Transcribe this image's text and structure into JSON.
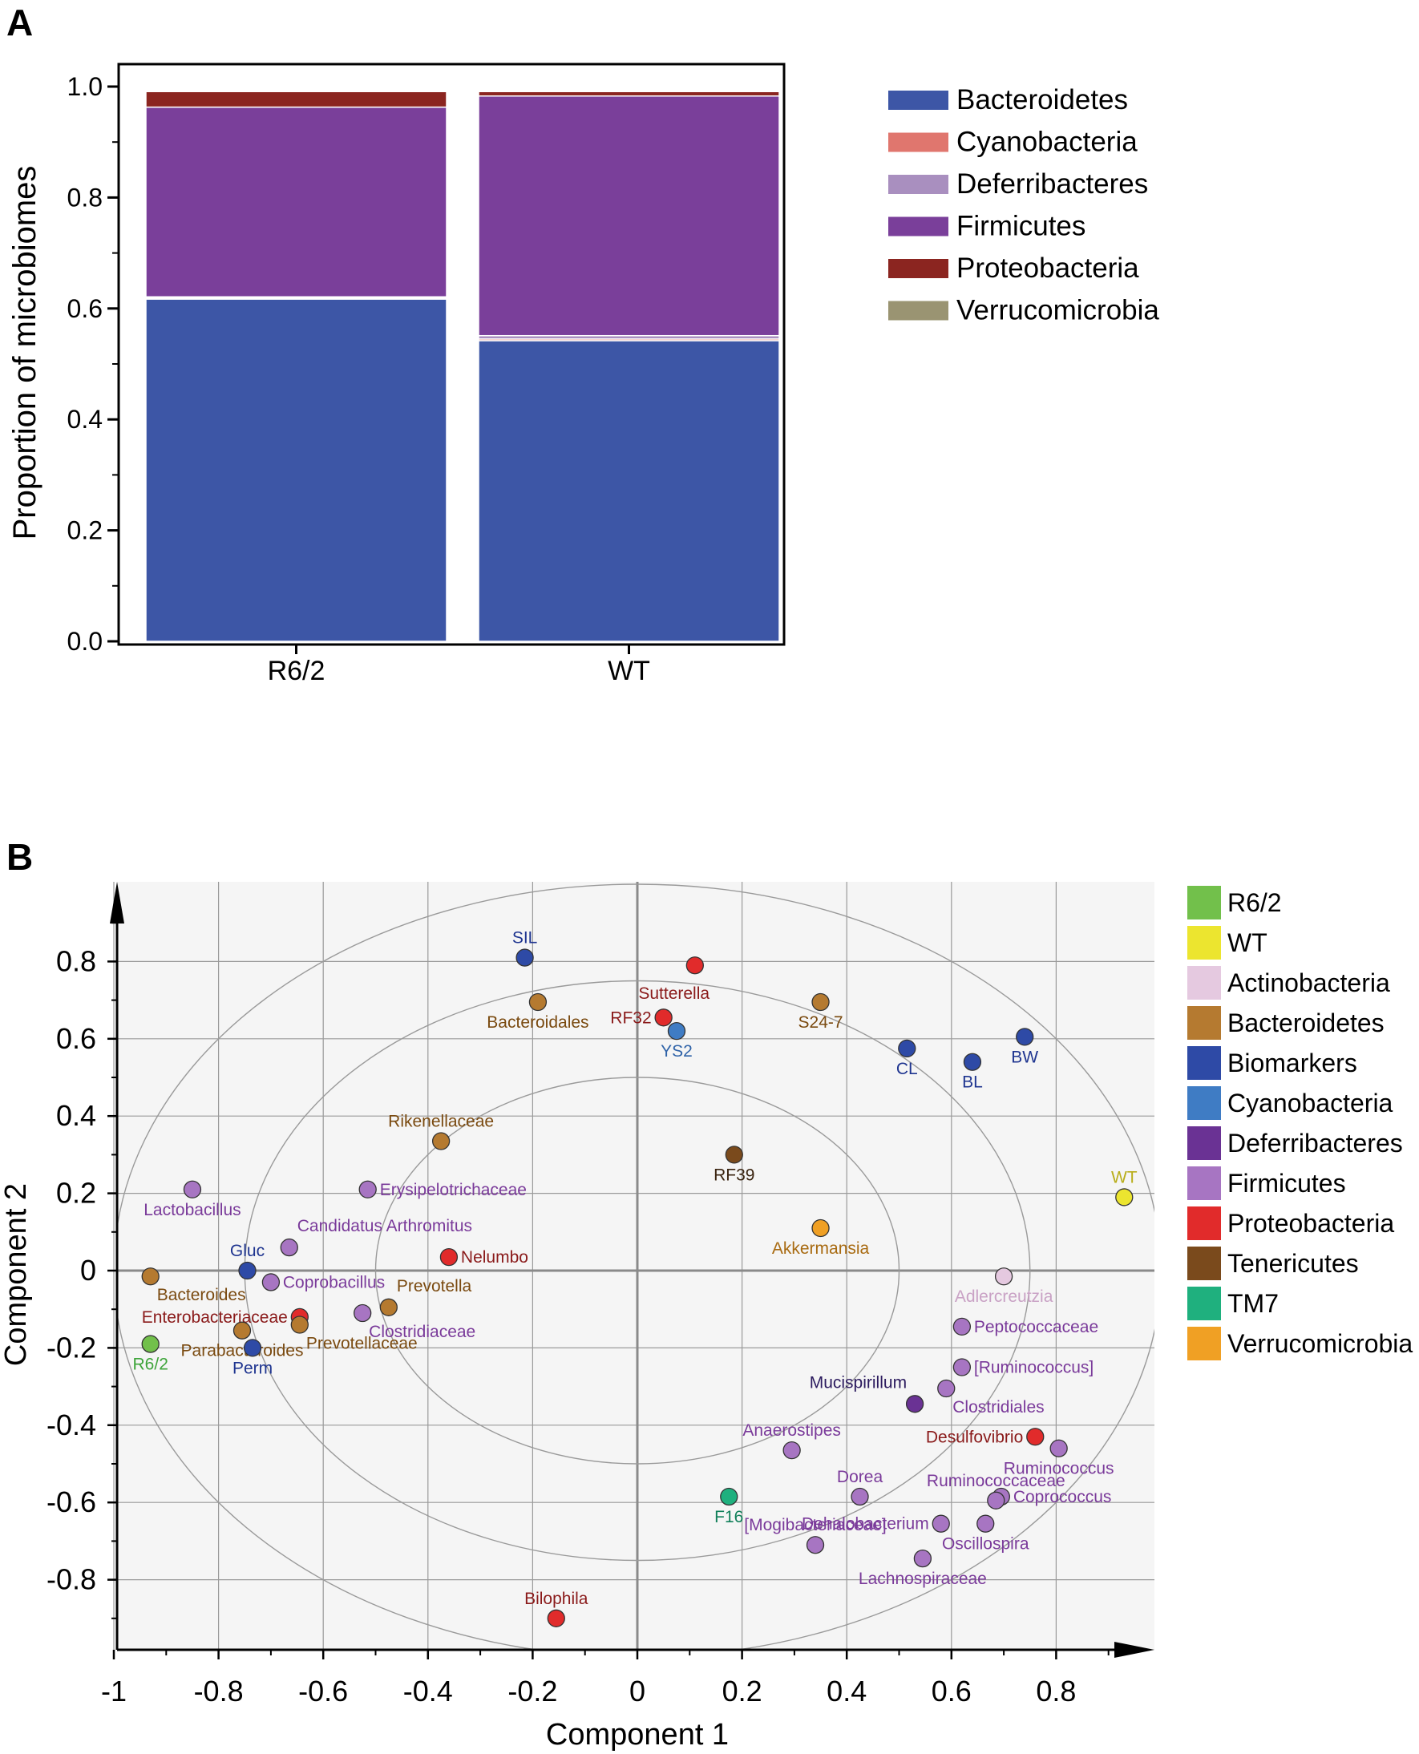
{
  "chart_data": [
    {
      "panel_label": "A",
      "type": "bar",
      "stacked": true,
      "ylabel": "Proportion of microbiomes",
      "xlabel": "",
      "ylim": [
        0,
        1.0
      ],
      "yticks": [
        "0.0",
        "0.2",
        "0.4",
        "0.6",
        "0.8",
        "1.0"
      ],
      "categories": [
        "R6/2",
        "WT"
      ],
      "series": [
        {
          "name": "Bacteroidetes",
          "color": "#3d56a6",
          "values": [
            0.617,
            0.542
          ]
        },
        {
          "name": "Cyanobacteria",
          "color": "#e0766e",
          "values": [
            0.002,
            0.003
          ]
        },
        {
          "name": "Deferribacteres",
          "color": "#a98fbf",
          "values": [
            0.002,
            0.006
          ]
        },
        {
          "name": "Firmicutes",
          "color": "#7a3f9a",
          "values": [
            0.342,
            0.432
          ]
        },
        {
          "name": "Proteobacteria",
          "color": "#8b2520",
          "values": [
            0.028,
            0.008
          ]
        },
        {
          "name": "Verrucomicrobia",
          "color": "#9a9472",
          "values": [
            0.001,
            0.001
          ]
        }
      ]
    },
    {
      "panel_label": "B",
      "type": "scatter",
      "xlabel": "Component 1",
      "ylabel": "Component 2",
      "xlim": [
        -1,
        0.95
      ],
      "ylim": [
        -0.95,
        0.92
      ],
      "xticks": [
        "-1",
        "-0.8",
        "-0.6",
        "-0.4",
        "-0.2",
        "0",
        "0.2",
        "0.4",
        "0.6",
        "0.8"
      ],
      "yticks": [
        "0.8",
        "0.6",
        "0.4",
        "0.2",
        "0",
        "-0.2",
        "-0.4",
        "-0.6",
        "-0.8"
      ],
      "circle_radii": [
        0.5,
        0.75,
        1.0
      ],
      "legend": [
        {
          "name": "R6/2",
          "color": "#72c04b"
        },
        {
          "name": "WT",
          "color": "#ece52f"
        },
        {
          "name": "Actinobacteria",
          "color": "#e5c9e0"
        },
        {
          "name": "Bacteroidetes",
          "color": "#b57a30"
        },
        {
          "name": "Biomarkers",
          "color": "#2e4aa6"
        },
        {
          "name": "Cyanobacteria",
          "color": "#3f7cc4"
        },
        {
          "name": "Deferribacteres",
          "color": "#6a3294"
        },
        {
          "name": "Firmicutes",
          "color": "#a775c2"
        },
        {
          "name": "Proteobacteria",
          "color": "#e12b2b"
        },
        {
          "name": "Tenericutes",
          "color": "#7a4a1c"
        },
        {
          "name": "TM7",
          "color": "#1fb07e"
        },
        {
          "name": "Verrucomicrobia",
          "color": "#f0a024"
        }
      ],
      "points": [
        {
          "label": "SIL",
          "x": -0.215,
          "y": 0.81,
          "group": "Biomarkers",
          "pos": "above"
        },
        {
          "label": "",
          "x": 0.11,
          "y": 0.79,
          "group": "Proteobacteria",
          "pos": "none"
        },
        {
          "label": "Sutterella",
          "x": 0.07,
          "y": 0.72,
          "group": "Proteobacteria",
          "pos": "text-only"
        },
        {
          "label": "Bacteroidales",
          "x": -0.19,
          "y": 0.695,
          "group": "Bacteroidetes",
          "pos": "below"
        },
        {
          "label": "S24-7",
          "x": 0.35,
          "y": 0.695,
          "group": "Bacteroidetes",
          "pos": "below"
        },
        {
          "label": "RF32",
          "x": 0.05,
          "y": 0.655,
          "group": "Proteobacteria",
          "pos": "left"
        },
        {
          "label": "YS2",
          "x": 0.075,
          "y": 0.62,
          "group": "Cyanobacteria",
          "pos": "below"
        },
        {
          "label": "BW",
          "x": 0.74,
          "y": 0.605,
          "group": "Biomarkers",
          "pos": "below"
        },
        {
          "label": "CL",
          "x": 0.515,
          "y": 0.575,
          "group": "Biomarkers",
          "pos": "below"
        },
        {
          "label": "BL",
          "x": 0.64,
          "y": 0.54,
          "group": "Biomarkers",
          "pos": "below"
        },
        {
          "label": "Rikenellaceae",
          "x": -0.375,
          "y": 0.335,
          "group": "Bacteroidetes",
          "pos": "above"
        },
        {
          "label": "RF39",
          "x": 0.185,
          "y": 0.3,
          "group": "Tenericutes",
          "pos": "below"
        },
        {
          "label": "Erysipelotrichaceae",
          "x": -0.515,
          "y": 0.21,
          "group": "Firmicutes",
          "pos": "right"
        },
        {
          "label": "Lactobacillus",
          "x": -0.85,
          "y": 0.21,
          "group": "Firmicutes",
          "pos": "below"
        },
        {
          "label": "WT",
          "x": 0.93,
          "y": 0.19,
          "group": "WT",
          "pos": "above"
        },
        {
          "label": "Akkermansia",
          "x": 0.35,
          "y": 0.11,
          "group": "Verrucomicrobia",
          "pos": "below"
        },
        {
          "label": "Candidatus Arthromitus",
          "x": -0.665,
          "y": 0.06,
          "group": "Firmicutes",
          "pos": "above-right"
        },
        {
          "label": "Nelumbo",
          "x": -0.36,
          "y": 0.035,
          "group": "Proteobacteria",
          "pos": "right"
        },
        {
          "label": "Gluc",
          "x": -0.745,
          "y": 0.0,
          "group": "Biomarkers",
          "pos": "above"
        },
        {
          "label": "Bacteroides",
          "x": -0.93,
          "y": -0.015,
          "group": "Bacteroidetes",
          "pos": "below-right"
        },
        {
          "label": "Coprobacillus",
          "x": -0.7,
          "y": -0.03,
          "group": "Firmicutes",
          "pos": "right"
        },
        {
          "label": "Adlercreutzia",
          "x": 0.7,
          "y": -0.015,
          "group": "Actinobacteria",
          "pos": "below"
        },
        {
          "label": "Prevotella",
          "x": -0.475,
          "y": -0.095,
          "group": "Bacteroidetes",
          "pos": "above-right"
        },
        {
          "label": "Clostridiaceae",
          "x": -0.525,
          "y": -0.11,
          "group": "Firmicutes",
          "pos": "below-right"
        },
        {
          "label": "Enterobacteriaceae",
          "x": -0.645,
          "y": -0.12,
          "group": "Proteobacteria",
          "pos": "left"
        },
        {
          "label": "Prevotellaceae",
          "x": -0.645,
          "y": -0.14,
          "group": "Bacteroidetes",
          "pos": "below-right"
        },
        {
          "label": "Peptococcaceae",
          "x": 0.62,
          "y": -0.145,
          "group": "Firmicutes",
          "pos": "right"
        },
        {
          "label": "Parabacteroides",
          "x": -0.755,
          "y": -0.155,
          "group": "Bacteroidetes",
          "pos": "below"
        },
        {
          "label": "R6/2",
          "x": -0.93,
          "y": -0.19,
          "group": "R6/2",
          "pos": "below"
        },
        {
          "label": "Perm",
          "x": -0.735,
          "y": -0.2,
          "group": "Biomarkers",
          "pos": "below"
        },
        {
          "label": "[Ruminococcus]",
          "x": 0.62,
          "y": -0.25,
          "group": "Firmicutes",
          "pos": "right"
        },
        {
          "label": "Clostridiales",
          "x": 0.59,
          "y": -0.305,
          "group": "Firmicutes",
          "pos": "below-right"
        },
        {
          "label": "Mucispirillum",
          "x": 0.53,
          "y": -0.345,
          "group": "Deferribacteres",
          "pos": "above-left"
        },
        {
          "label": "Desulfovibrio",
          "x": 0.76,
          "y": -0.43,
          "group": "Proteobacteria",
          "pos": "left"
        },
        {
          "label": "Ruminococcus",
          "x": 0.805,
          "y": -0.46,
          "group": "Firmicutes",
          "pos": "below"
        },
        {
          "label": "Anaerostipes",
          "x": 0.295,
          "y": -0.465,
          "group": "Firmicutes",
          "pos": "above"
        },
        {
          "label": "F16",
          "x": 0.175,
          "y": -0.585,
          "group": "TM7",
          "pos": "below"
        },
        {
          "label": "Dorea",
          "x": 0.425,
          "y": -0.585,
          "group": "Firmicutes",
          "pos": "above"
        },
        {
          "label": "Coprococcus",
          "x": 0.695,
          "y": -0.585,
          "group": "Firmicutes",
          "pos": "right"
        },
        {
          "label": "Ruminococcaceae",
          "x": 0.685,
          "y": -0.595,
          "group": "Firmicutes",
          "pos": "above"
        },
        {
          "label": "Dehalobacterium",
          "x": 0.58,
          "y": -0.655,
          "group": "Firmicutes",
          "pos": "left"
        },
        {
          "label": "Oscillospira",
          "x": 0.665,
          "y": -0.655,
          "group": "Firmicutes",
          "pos": "below"
        },
        {
          "label": "[Mogibacteriaceae]",
          "x": 0.34,
          "y": -0.71,
          "group": "Firmicutes",
          "pos": "above"
        },
        {
          "label": "Lachnospiraceae",
          "x": 0.545,
          "y": -0.745,
          "group": "Firmicutes",
          "pos": "below"
        },
        {
          "label": "Bilophila",
          "x": -0.155,
          "y": -0.9,
          "group": "Proteobacteria",
          "pos": "above"
        }
      ]
    }
  ]
}
